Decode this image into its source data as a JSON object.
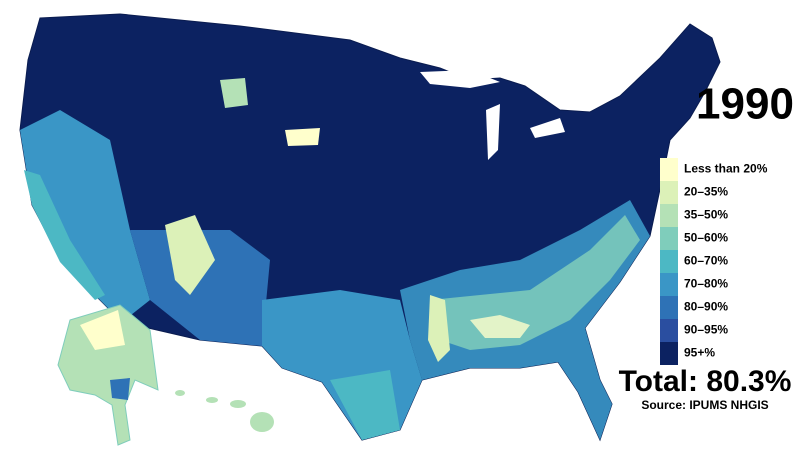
{
  "title": "1990",
  "legend": {
    "items": [
      {
        "label": "Less than 20%",
        "color": "#ffffcc"
      },
      {
        "label": "20–35%",
        "color": "#dcf1b8"
      },
      {
        "label": "35–50%",
        "color": "#b4e1b6"
      },
      {
        "label": "50–60%",
        "color": "#7fcdbb"
      },
      {
        "label": "60–70%",
        "color": "#4cb8c4"
      },
      {
        "label": "70–80%",
        "color": "#3a96c6"
      },
      {
        "label": "80–90%",
        "color": "#2e72b6"
      },
      {
        "label": "90–95%",
        "color": "#2a4ea0"
      },
      {
        "label": "95+%",
        "color": "#0c2261"
      }
    ]
  },
  "total": "Total: 80.3%",
  "source": "Source: IPUMS NHGIS"
}
